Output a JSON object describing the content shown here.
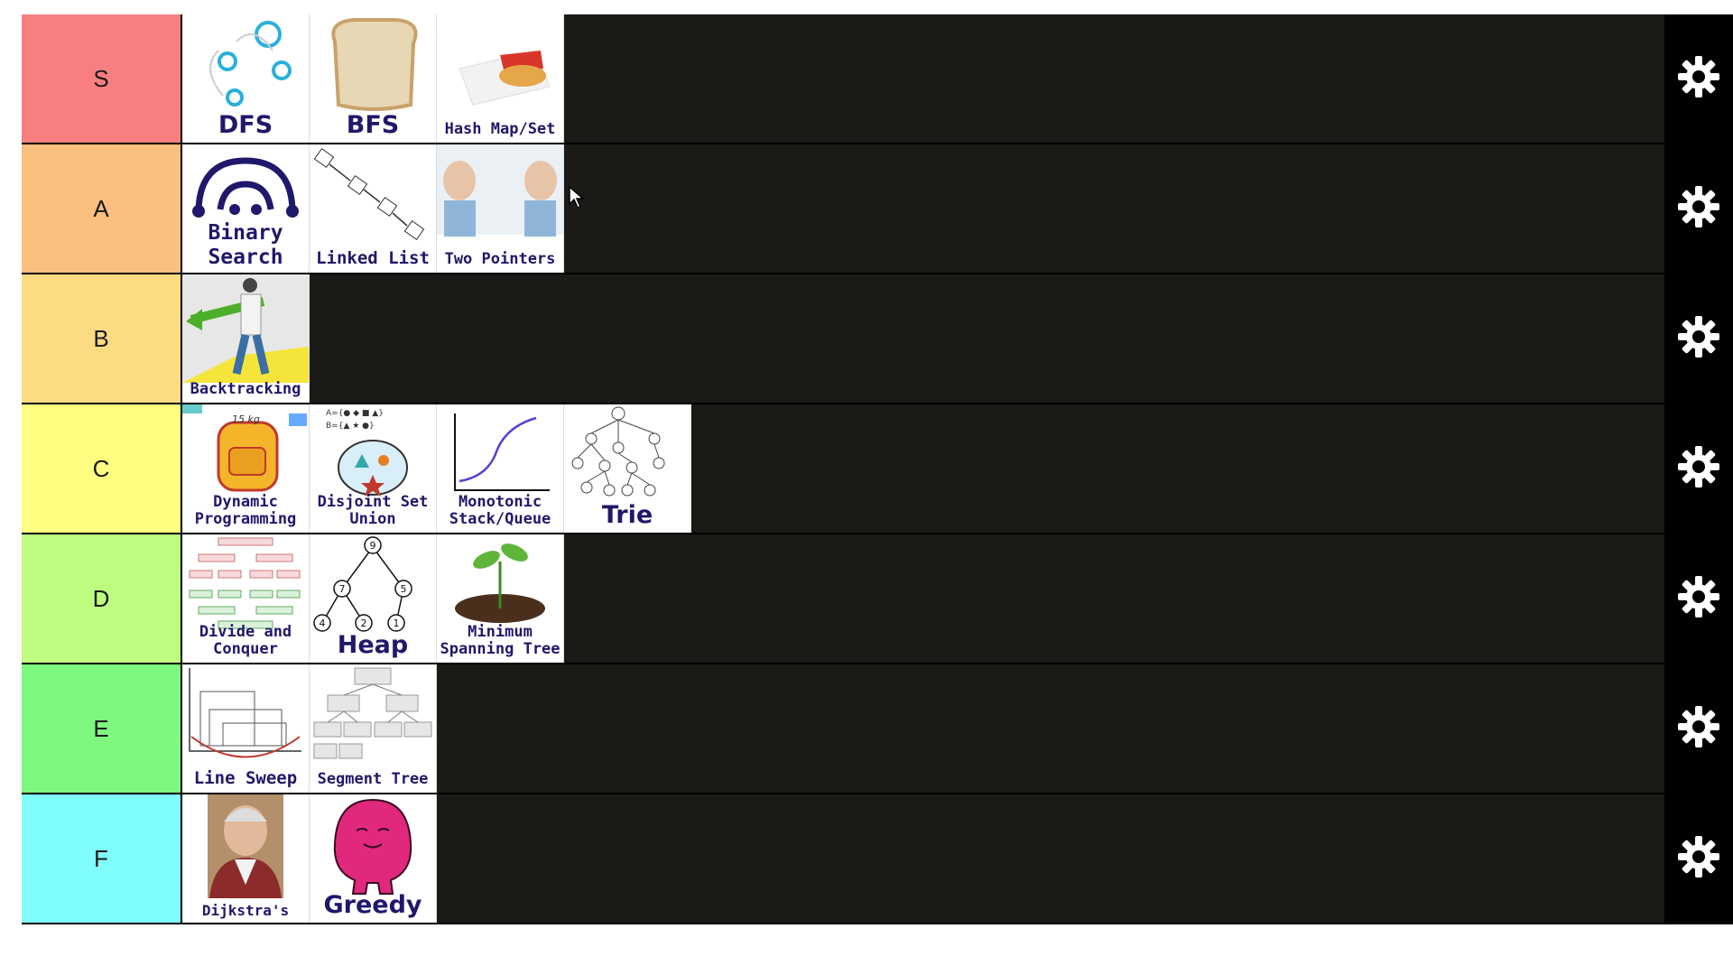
{
  "tiers": [
    {
      "label": "S",
      "color": "#f77f7f",
      "items": [
        {
          "icon": "dfs-graph-icon",
          "caption": "DFS",
          "size": "s24"
        },
        {
          "icon": "bread-slice-icon",
          "caption": "BFS",
          "size": "s24"
        },
        {
          "icon": "hashbrown-icon",
          "caption": "Hash Map/Set",
          "size": "s13"
        }
      ]
    },
    {
      "label": "A",
      "color": "#fbbf80",
      "items": [
        {
          "icon": "binary-search-arcs-icon",
          "caption": "Binary Search",
          "size": "s20"
        },
        {
          "icon": "linked-list-nodes-icon",
          "caption": "Linked List",
          "size": "s18"
        },
        {
          "icon": "two-people-pointing-icon",
          "caption": "Two Pointers",
          "size": "s13"
        }
      ]
    },
    {
      "label": "B",
      "color": "#fddb82",
      "items": [
        {
          "icon": "walking-man-arrow-icon",
          "caption": "Backtracking",
          "size": "s13"
        }
      ]
    },
    {
      "label": "C",
      "color": "#fefe80",
      "items": [
        {
          "icon": "backpack-icon",
          "caption": "Dynamic Programming",
          "size": "s13"
        },
        {
          "icon": "disjoint-set-venn-icon",
          "caption": "Disjoint Set Union",
          "size": "s13"
        },
        {
          "icon": "monotonic-curve-icon",
          "caption": "Monotonic Stack/Queue",
          "size": "s13"
        },
        {
          "icon": "trie-tree-icon",
          "caption": "Trie",
          "size": "s24"
        }
      ]
    },
    {
      "label": "D",
      "color": "#bdfc7f",
      "items": [
        {
          "icon": "divide-conquer-tree-icon",
          "caption": "Divide and Conquer",
          "size": "s13"
        },
        {
          "icon": "heap-tree-icon",
          "caption": "Heap",
          "size": "s24"
        },
        {
          "icon": "seedling-icon",
          "caption": "Minimum Spanning Tree",
          "size": "s13"
        }
      ]
    },
    {
      "label": "E",
      "color": "#7ff87f",
      "items": [
        {
          "icon": "line-sweep-chart-icon",
          "caption": "Line Sweep",
          "size": "s18"
        },
        {
          "icon": "segment-tree-icon",
          "caption": "Segment Tree",
          "size": "s13"
        }
      ]
    },
    {
      "label": "F",
      "color": "#7ffdfd",
      "items": [
        {
          "icon": "dijkstra-portrait-icon",
          "caption": "Dijkstra's",
          "size": "s16"
        },
        {
          "icon": "pink-blob-character-icon",
          "caption": "Greedy",
          "size": "s24"
        }
      ]
    }
  ],
  "settings_icon": "gear-icon"
}
